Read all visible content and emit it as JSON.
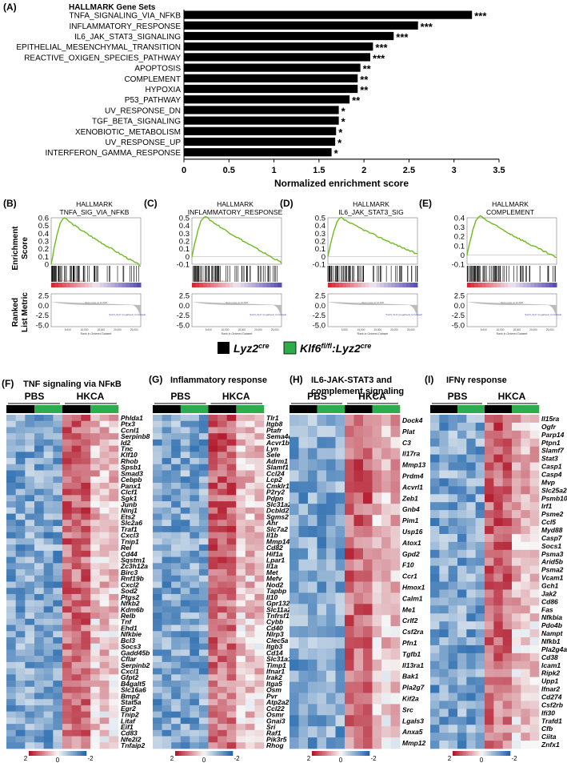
{
  "chart_data": [
    {
      "panel": "(A)",
      "type": "bar",
      "orientation": "horizontal",
      "title": "HALLMARK Gene Sets",
      "xlabel": "Normalized enrichment score",
      "xlim": [
        0,
        3.5
      ],
      "xticks": [
        "0",
        "0.5",
        "1",
        "1.5",
        "2",
        "2.5",
        "3",
        "3.5"
      ],
      "categories": [
        "TNFA_SIGNALING_VIA_NFKB",
        "INFLAMMATORY_RESPONSE",
        "IL6_JAK_STAT3_SIGNALING",
        "EPITHELIAL_MESENCHYMAL_TRANSITION",
        "REACTIVE_OXIGEN_SPECIES_PATHWAY",
        "APOPTOSIS",
        "COMPLEMENT",
        "HYPOXIA",
        "P53_PATHWAY",
        "UV_RESPONSE_DN",
        "TGF_BETA_SIGNALING",
        "XENOBIOTIC_METABOLISM",
        "UV_RESPONSE_UP",
        "INTERFERON_GAMMA_RESPONSE"
      ],
      "values": [
        3.2,
        2.6,
        2.33,
        2.1,
        2.07,
        1.96,
        1.93,
        1.93,
        1.84,
        1.72,
        1.72,
        1.69,
        1.68,
        1.64
      ],
      "significance": [
        "***",
        "***",
        "***",
        "***",
        "***",
        "**",
        "**",
        "**",
        "**",
        "*",
        "*",
        "*",
        "*",
        "*"
      ]
    },
    {
      "type": "gsea",
      "panels": [
        {
          "label": "(B)",
          "title1": "HALLMARK",
          "title2": "TNFA_SIG_VIA_NFKB",
          "yticks": [
            "0.6",
            "0.5",
            "0.4",
            "0.3",
            "0.2",
            "0.1",
            "0"
          ],
          "ymax": 0.6,
          "ymin": 0,
          "peak": 0.6,
          "end": -0.02
        },
        {
          "label": "(C)",
          "title1": "HALLMARK",
          "title2": "INFLAMMATORY_RESPONSE",
          "yticks": [
            "0.5",
            "0.4",
            "0.3",
            "0.2",
            "0.1",
            "0",
            "-0.1"
          ],
          "ymax": 0.5,
          "ymin": -0.1,
          "peak": 0.52,
          "end": -0.08
        },
        {
          "label": "(D)",
          "title1": "HALLMARK",
          "title2": "IL6_JAK_STAT3_SIG",
          "yticks": [
            "0.5",
            "0.4",
            "0.3",
            "0.2",
            "0.1",
            "0",
            "-0.1"
          ],
          "ymax": 0.5,
          "ymin": -0.1,
          "peak": 0.5,
          "end": 0.03
        },
        {
          "label": "(E)",
          "title1": "HALLMARK",
          "title2": "COMPLEMENT",
          "yticks": [
            "0.4",
            "0.3",
            "0.2",
            "0.1",
            "0",
            "-0.1"
          ],
          "ymax": 0.4,
          "ymin": -0.1,
          "peak": 0.42,
          "end": -0.03
        }
      ],
      "es_label": "Enrichment Score",
      "rlm_label": "Ranked List Metric",
      "rlm_ticks": [
        "2.5",
        "0.0",
        "-2.5",
        "-5.0"
      ],
      "rank_ticks": [
        "5,000",
        "10,000",
        "15,000",
        "20,000",
        "25,000"
      ],
      "rank_label": "Rank in Ordered Dataset",
      "pos_label": "'KF_KLK' (positively correlated)",
      "neg_label": "'KLF6_KLK' (negatively correlated)",
      "zero_label": "Zero cross at 13,548"
    },
    {
      "type": "heatmap",
      "groups": [
        "PBS",
        "HKCA"
      ],
      "scale_labels": [
        "2",
        "0",
        "-2"
      ],
      "panels": [
        {
          "label": "(F)",
          "title": "TNF signaling via NFκB",
          "genes": [
            "Phlda1",
            "Ptx3",
            "Ccnl1",
            "Serpinb8",
            "Id2",
            "Tnc",
            "Klf10",
            "Rhob",
            "Spsb1",
            "Smad3",
            "Cebpb",
            "Panx1",
            "Clcf1",
            "Sgk1",
            "Junb",
            "Ninj1",
            "Ets2",
            "Slc2a6",
            "Traf1",
            "Cxcl3",
            "Tnip1",
            "Rel",
            "Cd44",
            "Sqstm1",
            "Zc3h12a",
            "Birc3",
            "Rnf19b",
            "Cxcl2",
            "Sod2",
            "Ptgs2",
            "Nfkb2",
            "Kdm6b",
            "Relb",
            "Tnf",
            "Ehd1",
            "Nfkbie",
            "Bcl3",
            "Socs3",
            "Gadd45b",
            "Cflar",
            "Serpinb2",
            "Cxcl1",
            "Gfpt2",
            "B4galt5",
            "Slc16a6",
            "Bmp2",
            "Stat5a",
            "Egr2",
            "Tnip2",
            "Litaf",
            "Eif1",
            "Cd83",
            "Nfe2l2",
            "Tnfaip2"
          ]
        },
        {
          "label": "(G)",
          "title": "Inflammatory response",
          "genes": [
            "Tlr1",
            "Itgb8",
            "Ptafr",
            "Sema4d",
            "Acvr1b",
            "Lyn",
            "Sele",
            "Adrm1",
            "Slamf1",
            "Ccl24",
            "Lcp2",
            "Cmklr1",
            "P2ry2",
            "Pdpn",
            "Slc31a2",
            "Dcbld2",
            "Sgms2",
            "Ahr",
            "Slc7a2",
            "Il1b",
            "Mmp14",
            "Cd82",
            "Hif1a",
            "Lpar1",
            "Il1a",
            "Met",
            "Mefv",
            "Nod2",
            "Tapbp",
            "Il10",
            "Gpr132",
            "Slc11a2",
            "Tnfrsf1b",
            "Cybb",
            "Cd40",
            "Nlrp3",
            "Clec5a",
            "Itgb3",
            "Cd14",
            "Slc31a1",
            "Timp1",
            "Ifnar1",
            "Irak2",
            "Itga5",
            "Osm",
            "Pvr",
            "Atp2a2",
            "Ccl22",
            "Osmr",
            "Gnai3",
            "Sri",
            "Raf1",
            "Pik3r5",
            "Rhog"
          ]
        },
        {
          "label": "(H)",
          "title": "IL6-JAK-STAT3 and",
          "title2": "complement signaling",
          "genes": [
            "Dock4",
            "Plat",
            "C3",
            "Il17ra",
            "Mmp13",
            "Prdm4",
            "Acvrl1",
            "Zeb1",
            "Gnb4",
            "Pim1",
            "Usp16",
            "Atox1",
            "Gpd2",
            "F10",
            "Ccr1",
            "Hmox1",
            "Calm1",
            "Me1",
            "Crlf2",
            "Csf2ra",
            "Pfn1",
            "Tgfb1",
            "Il13ra1",
            "Bak1",
            "Pla2g7",
            "Kif2a",
            "Src",
            "Lgals3",
            "Anxa5",
            "Mmp12"
          ]
        },
        {
          "label": "(I)",
          "title": "IFNγ response",
          "genes": [
            "Il15ra",
            "Ogfr",
            "Parp14",
            "Ptpn1",
            "Slamf7",
            "Stat3",
            "Casp1",
            "Casp4",
            "Mvp",
            "Slc25a28",
            "Psmb10",
            "Irf1",
            "Psme2",
            "Ccl5",
            "Myd88",
            "Casp7",
            "Socs1",
            "Psma3",
            "Arid5b",
            "Psma2",
            "Vcam1",
            "Gch1",
            "Jak2",
            "Cd86",
            "Fas",
            "Nfkbia",
            "Pdo4b",
            "Nampt",
            "Nfkb1",
            "Pla2g4a",
            "Cd38",
            "Icam1",
            "Ripk2",
            "Upp1",
            "Ifnar2",
            "Cd274",
            "Csf2rb",
            "Ifi30",
            "Trafd1",
            "Cfb",
            "Ciita",
            "Znfx1"
          ]
        }
      ]
    }
  ],
  "legend": [
    {
      "label": "Lyz2",
      "sup": "cre",
      "color": "#000000"
    },
    {
      "label": "Klf6",
      "sup": "fl/fl",
      "label2": ":Lyz2",
      "sup2": "cre",
      "color": "#2eab4a"
    }
  ],
  "colors": {
    "bar": "#000000",
    "es_line": "#6dbb1e",
    "red": "#b2182b",
    "blue": "#2166ac",
    "green": "#2eab4a"
  }
}
